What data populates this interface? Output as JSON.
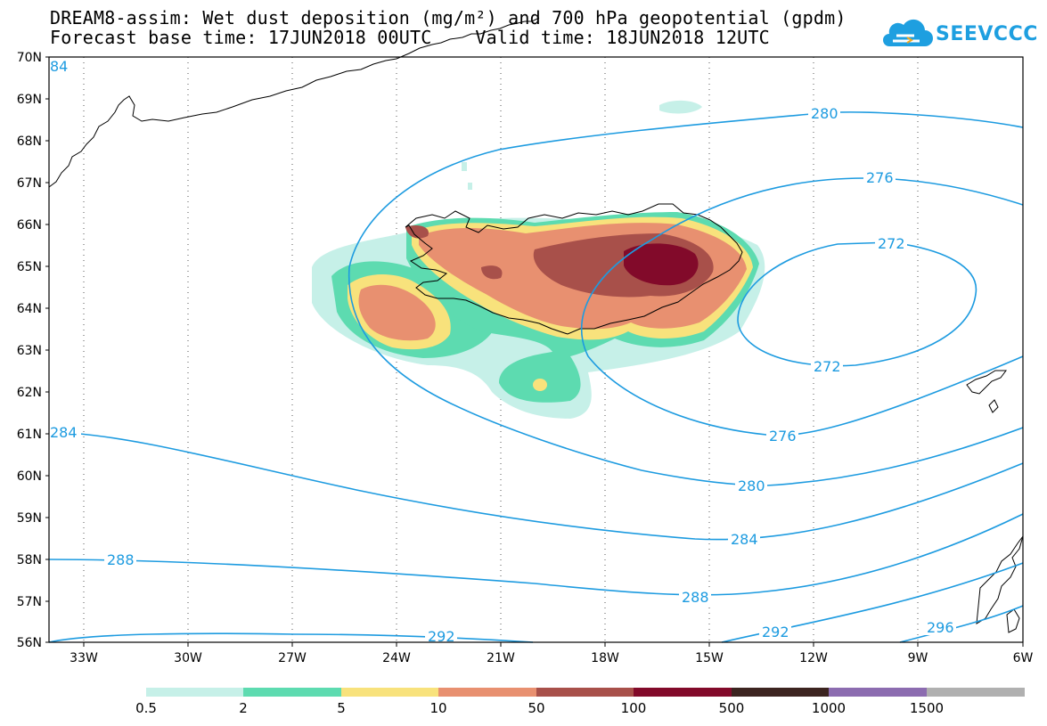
{
  "title": {
    "line1": "DREAM8-assim: Wet dust deposition (mg/m²) and 700 hPa geopotential (gpdm)",
    "line2": "Forecast base time: 17JUN2018 00UTC    Valid time: 18JUN2018 12UTC"
  },
  "logo": {
    "text": "SEEVCCC",
    "icon": "cloud-icon",
    "color": "#1e9fe0"
  },
  "map": {
    "lat_labels": [
      "70N",
      "69N",
      "68N",
      "67N",
      "66N",
      "65N",
      "64N",
      "63N",
      "62N",
      "61N",
      "60N",
      "59N",
      "58N",
      "57N",
      "56N"
    ],
    "lon_labels": [
      "33W",
      "30W",
      "27W",
      "24W",
      "21W",
      "18W",
      "15W",
      "12W",
      "9W",
      "6W"
    ],
    "contour_color": "#1d9be0",
    "contour_labels": {
      "c84": "84",
      "c280_top": "280",
      "c276_top": "276",
      "c272_top": "272",
      "c272_bottom": "272",
      "c276_bottom": "276",
      "c280_bottom": "280",
      "c284_left": "284",
      "c284_right": "284",
      "c288_left": "288",
      "c288_right": "288",
      "c292_left": "292",
      "c292_right": "292",
      "c296": "296"
    }
  },
  "colorbar": {
    "labels": [
      "0.5",
      "2",
      "5",
      "10",
      "50",
      "100",
      "500",
      "1000",
      "1500"
    ],
    "colors": [
      "#c6f0e8",
      "#5ddbb0",
      "#f8e27c",
      "#e89070",
      "#a8504a",
      "#820a2a",
      "#3c2420",
      "#8c6cb0",
      "#b0b0b0"
    ]
  }
}
